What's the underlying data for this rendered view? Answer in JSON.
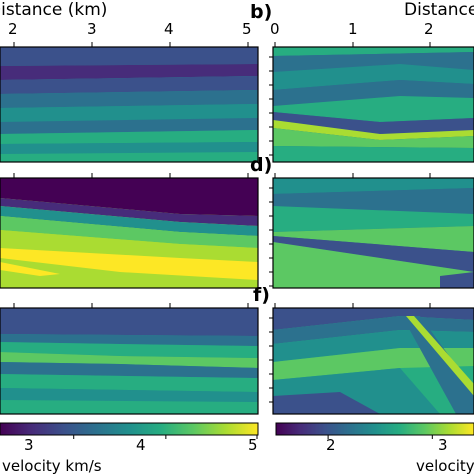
{
  "palette": {
    "deep": "#440154",
    "p1": "#472c7a",
    "p2": "#3b518b",
    "p3": "#2c718e",
    "p4": "#21908d",
    "p5": "#27ad81",
    "p6": "#5cc863",
    "p7": "#aadc32",
    "p8": "#fde725"
  },
  "chart_data": [
    {
      "type": "heatmap",
      "panel": "top-left",
      "title": "",
      "xlabel": "Distance (km)",
      "x_ticks": [
        2,
        3,
        4,
        5
      ],
      "colormap": "viridis"
    },
    {
      "type": "heatmap",
      "panel": "b",
      "label": "b)",
      "xlabel": "Distance",
      "x_ticks": [
        0,
        1,
        2
      ],
      "colormap": "viridis"
    },
    {
      "type": "heatmap",
      "panel": "middle-left",
      "colormap": "viridis"
    },
    {
      "type": "heatmap",
      "panel": "d",
      "label": "d)",
      "colormap": "viridis"
    },
    {
      "type": "heatmap",
      "panel": "bottom-left",
      "colormap": "viridis"
    },
    {
      "type": "heatmap",
      "panel": "f",
      "label": "f)",
      "colormap": "viridis"
    }
  ],
  "colorbars": [
    {
      "label": "velocity km/s",
      "ticks": [
        3,
        4,
        5
      ],
      "range": [
        2.2,
        5.0
      ],
      "colormap": "viridis"
    },
    {
      "label": "velocity",
      "ticks": [
        2,
        3
      ],
      "range": [
        1.5,
        3.4
      ],
      "colormap": "viridis"
    }
  ],
  "text": {
    "x_title_left": "Distance (km)",
    "x_title_right": "Distance",
    "letter_b": "b)",
    "letter_d": "d)",
    "letter_f": "f)",
    "cb_left_label": "velocity km/s",
    "cb_right_label": "velocity",
    "tick_l_2": "2",
    "tick_l_3": "3",
    "tick_l_4": "4",
    "tick_l_5": "5",
    "tick_r_0": "0",
    "tick_r_1": "1",
    "tick_r_2": "2",
    "cb_l_3": "3",
    "cb_l_4": "4",
    "cb_l_5": "5",
    "cb_r_2": "2",
    "cb_r_3": "3"
  }
}
